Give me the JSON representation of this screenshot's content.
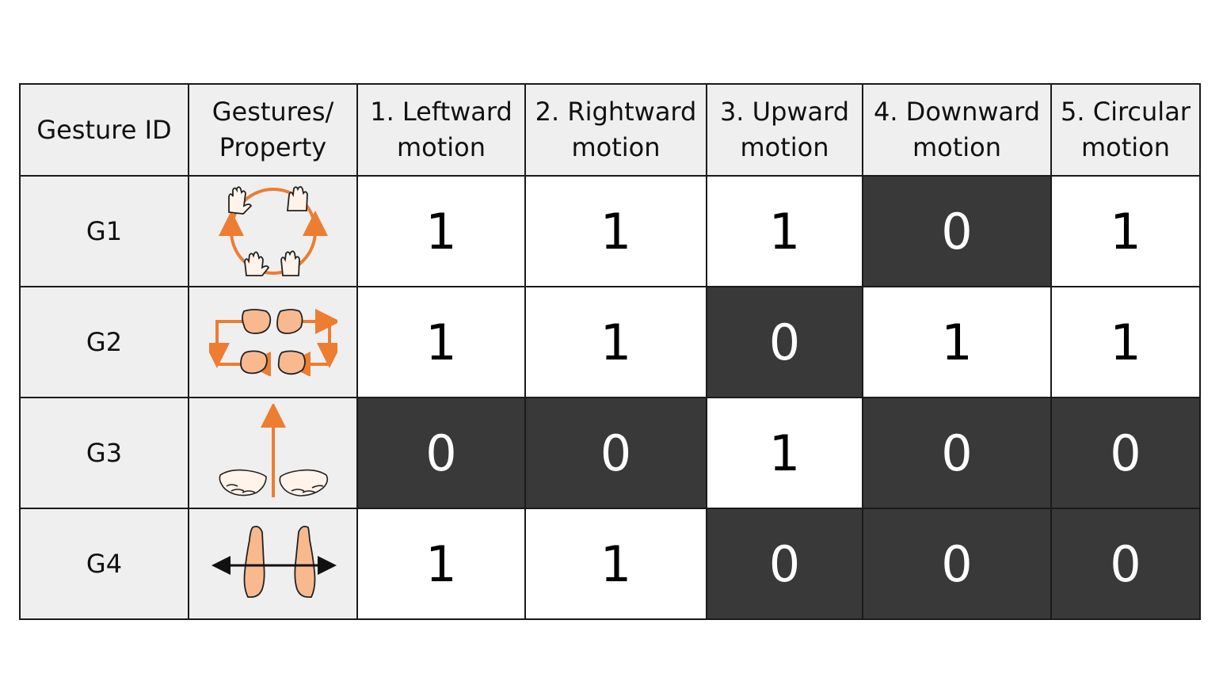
{
  "table": {
    "headers": [
      {
        "line1": "Gesture ID",
        "line2": ""
      },
      {
        "line1": "Gestures/",
        "line2": "Property"
      },
      {
        "line1": "1. Leftward",
        "line2": "motion"
      },
      {
        "line1": "2. Rightward",
        "line2": "motion"
      },
      {
        "line1": "3. Upward",
        "line2": "motion"
      },
      {
        "line1": "4. Downward",
        "line2": "motion"
      },
      {
        "line1": "5. Circular",
        "line2": "motion"
      }
    ],
    "rows": [
      {
        "id": "G1",
        "icon": "circular-hands-icon",
        "values": [
          1,
          1,
          1,
          0,
          1
        ]
      },
      {
        "id": "G2",
        "icon": "fist-loop-icon",
        "values": [
          1,
          1,
          0,
          1,
          1
        ]
      },
      {
        "id": "G3",
        "icon": "open-palms-up-icon",
        "values": [
          0,
          0,
          1,
          0,
          0
        ]
      },
      {
        "id": "G4",
        "icon": "palms-horizontal-icon",
        "values": [
          1,
          1,
          0,
          0,
          0
        ]
      }
    ]
  },
  "colors": {
    "header_bg": "#efefef",
    "active_cell": "#ffffff",
    "inactive_cell": "#393939",
    "accent_arrow": "#ed7d31",
    "skin": "#f8b98f"
  }
}
